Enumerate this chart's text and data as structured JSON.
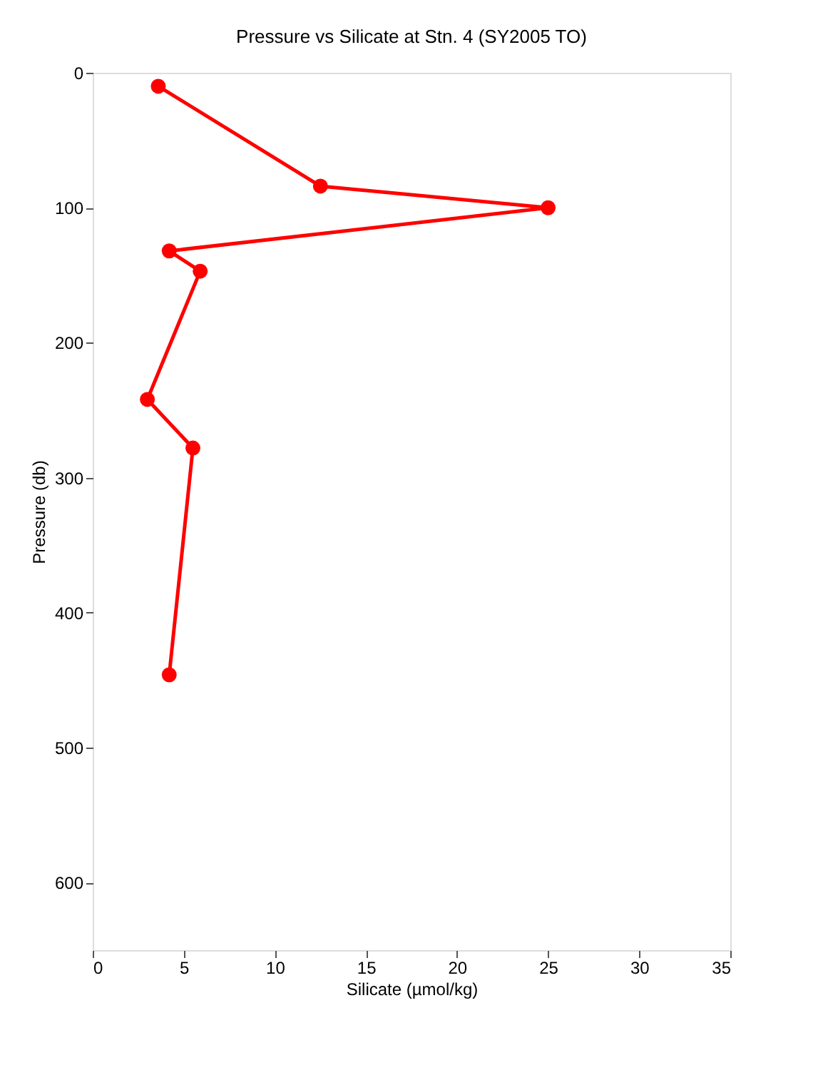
{
  "chart_data": {
    "type": "line",
    "title": "Pressure vs Silicate at Stn. 4 (SY2005 TO)",
    "xlabel": "Silicate (µmol/kg)",
    "ylabel": "Pressure (db)",
    "x": [
      3.6,
      12.5,
      25.0,
      4.2,
      5.9,
      3.0,
      5.5,
      4.2
    ],
    "series": [
      {
        "color": "#ff0000",
        "values": [
          10,
          84,
          100,
          132,
          147,
          242,
          278,
          446
        ]
      }
    ],
    "xlim": [
      0,
      35
    ],
    "xticks": [
      0,
      5,
      10,
      15,
      20,
      25,
      30,
      35
    ],
    "ylim": [
      650,
      0
    ],
    "yticks": [
      0,
      100,
      200,
      300,
      400,
      500,
      600
    ],
    "marker": "circle",
    "line_style": "solid",
    "grid": false
  }
}
